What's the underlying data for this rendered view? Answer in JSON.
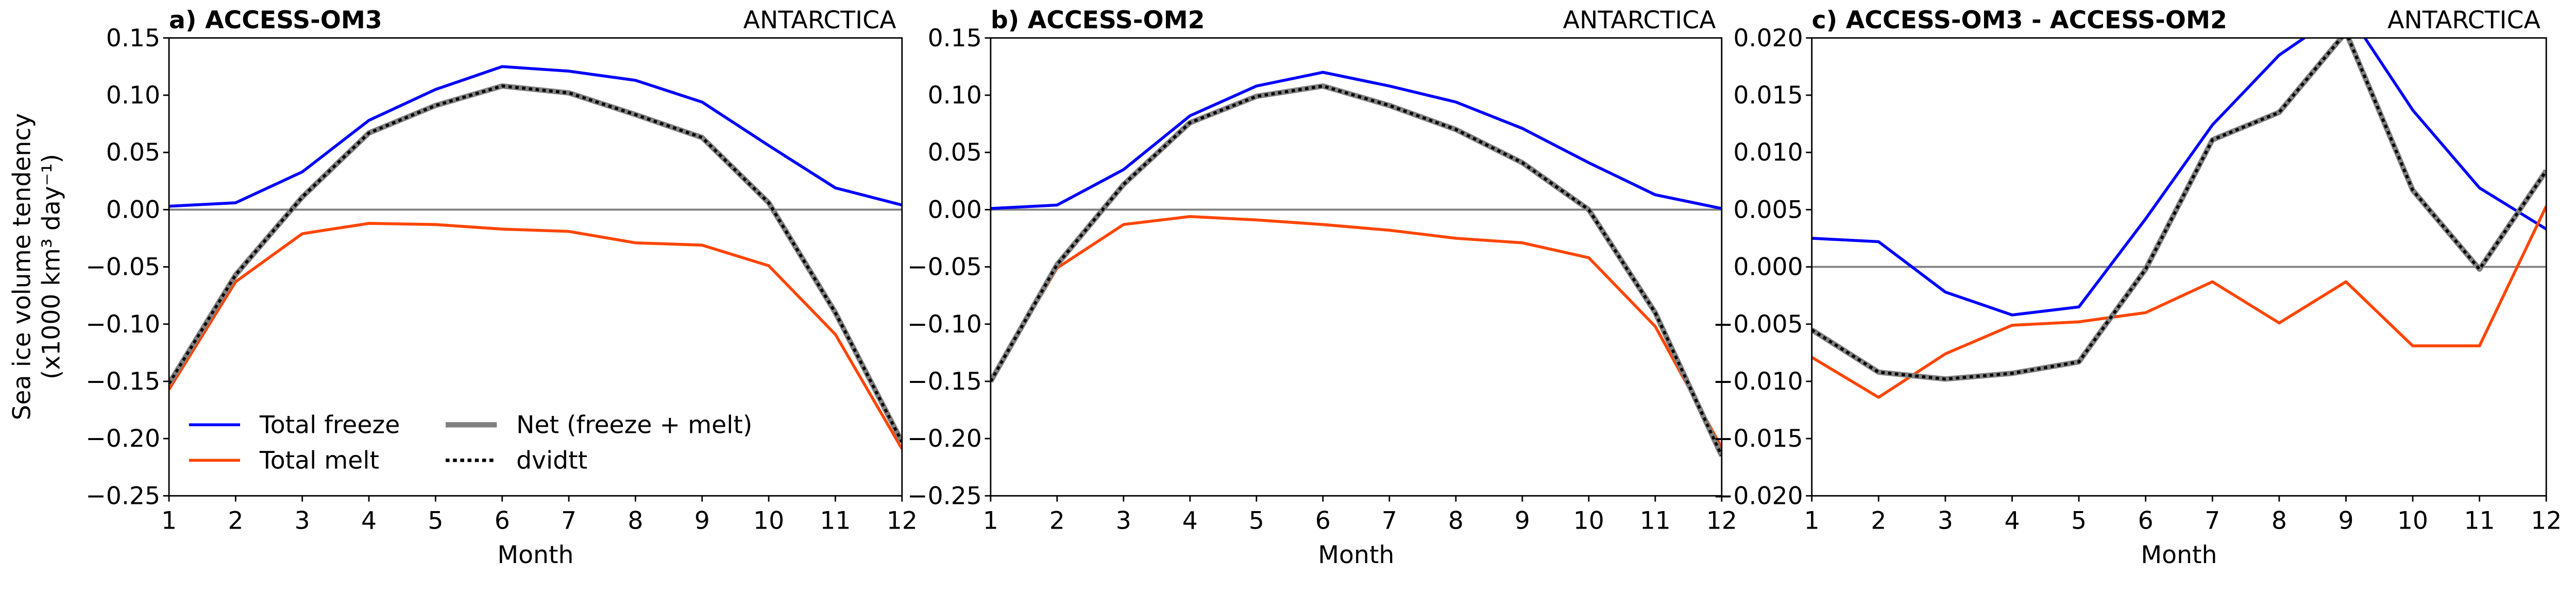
{
  "ylabel_line1": "Sea ice volume tendency",
  "ylabel_line2": "(x1000 km³ day⁻¹)",
  "legend": {
    "placement": "lower-left of panel a",
    "entries": [
      "Total freeze",
      "Total melt",
      "Net (freeze + melt)",
      "dvidtt"
    ]
  },
  "colors": {
    "freeze": "#0000ff",
    "melt": "#ff4500",
    "net": "#808080",
    "dvidtt": "#000000",
    "zero_line": "#808080"
  },
  "chart_data": [
    {
      "type": "line",
      "title": "a) ACCESS-OM3",
      "region": "ANTARCTICA",
      "xlabel": "Month",
      "ylabel": "Sea ice volume tendency (x1000 km³ day⁻¹)",
      "x": [
        1,
        2,
        3,
        4,
        5,
        6,
        7,
        8,
        9,
        10,
        11,
        12
      ],
      "xlim": [
        1,
        12
      ],
      "ylim": [
        -0.25,
        0.15
      ],
      "yticks": [
        "-0.25",
        "-0.20",
        "-0.15",
        "-0.10",
        "-0.05",
        "0.00",
        "0.05",
        "0.10",
        "0.15"
      ],
      "grid": false,
      "series": [
        {
          "name": "Total freeze",
          "values": [
            0.003,
            0.006,
            0.033,
            0.078,
            0.105,
            0.125,
            0.121,
            0.113,
            0.094,
            0.056,
            0.019,
            0.004
          ]
        },
        {
          "name": "Total melt",
          "values": [
            -0.157,
            -0.063,
            -0.021,
            -0.012,
            -0.013,
            -0.017,
            -0.019,
            -0.029,
            -0.031,
            -0.049,
            -0.109,
            -0.209
          ]
        },
        {
          "name": "Net (freeze + melt)",
          "values": [
            -0.152,
            -0.057,
            0.011,
            0.067,
            0.091,
            0.108,
            0.102,
            0.083,
            0.063,
            0.006,
            -0.09,
            -0.203
          ]
        },
        {
          "name": "dvidtt",
          "values": [
            -0.152,
            -0.057,
            0.011,
            0.067,
            0.091,
            0.108,
            0.102,
            0.083,
            0.063,
            0.006,
            -0.09,
            -0.203
          ]
        }
      ]
    },
    {
      "type": "line",
      "title": "b) ACCESS-OM2",
      "region": "ANTARCTICA",
      "xlabel": "Month",
      "x": [
        1,
        2,
        3,
        4,
        5,
        6,
        7,
        8,
        9,
        10,
        11,
        12
      ],
      "xlim": [
        1,
        12
      ],
      "ylim": [
        -0.25,
        0.15
      ],
      "yticks": [
        "-0.25",
        "-0.20",
        "-0.15",
        "-0.10",
        "-0.05",
        "0.00",
        "0.05",
        "0.10",
        "0.15"
      ],
      "grid": false,
      "series": [
        {
          "name": "Total freeze",
          "values": [
            0.001,
            0.004,
            0.035,
            0.082,
            0.108,
            0.12,
            0.108,
            0.094,
            0.071,
            0.041,
            0.013,
            0.001
          ]
        },
        {
          "name": "Total melt",
          "values": [
            -0.15,
            -0.051,
            -0.013,
            -0.006,
            -0.009,
            -0.013,
            -0.018,
            -0.025,
            -0.029,
            -0.042,
            -0.102,
            -0.208
          ]
        },
        {
          "name": "Net (freeze + melt)",
          "values": [
            -0.15,
            -0.048,
            0.022,
            0.076,
            0.099,
            0.108,
            0.091,
            0.07,
            0.041,
            0.0,
            -0.09,
            -0.215
          ]
        },
        {
          "name": "dvidtt",
          "values": [
            -0.15,
            -0.048,
            0.022,
            0.076,
            0.099,
            0.108,
            0.091,
            0.07,
            0.041,
            0.0,
            -0.09,
            -0.215
          ]
        }
      ]
    },
    {
      "type": "line",
      "title": "c) ACCESS-OM3 - ACCESS-OM2",
      "region": "ANTARCTICA",
      "xlabel": "Month",
      "x": [
        1,
        2,
        3,
        4,
        5,
        6,
        7,
        8,
        9,
        10,
        11,
        12
      ],
      "xlim": [
        1,
        12
      ],
      "ylim": [
        -0.02,
        0.02
      ],
      "yticks": [
        "-0.020",
        "-0.015",
        "-0.010",
        "-0.005",
        "0.000",
        "0.005",
        "0.010",
        "0.015",
        "0.020"
      ],
      "grid": false,
      "series": [
        {
          "name": "Total freeze",
          "values": [
            0.0025,
            0.0022,
            -0.0022,
            -0.0042,
            -0.0035,
            0.0042,
            0.0124,
            0.0185,
            0.0225,
            0.0137,
            0.0069,
            0.0033
          ]
        },
        {
          "name": "Total melt",
          "values": [
            -0.0079,
            -0.0114,
            -0.0076,
            -0.0051,
            -0.0048,
            -0.004,
            -0.0013,
            -0.0049,
            -0.0013,
            -0.0069,
            -0.0069,
            0.0053
          ]
        },
        {
          "name": "Net (freeze + melt)",
          "values": [
            -0.0055,
            -0.0092,
            -0.0098,
            -0.0093,
            -0.0083,
            -0.0002,
            0.0111,
            0.0135,
            0.0205,
            0.0067,
            -0.0002,
            0.0084
          ]
        },
        {
          "name": "dvidtt",
          "values": [
            -0.0055,
            -0.0092,
            -0.0098,
            -0.0093,
            -0.0083,
            -0.0002,
            0.0111,
            0.0135,
            0.0205,
            0.0067,
            -0.0002,
            0.0084
          ]
        }
      ]
    }
  ]
}
